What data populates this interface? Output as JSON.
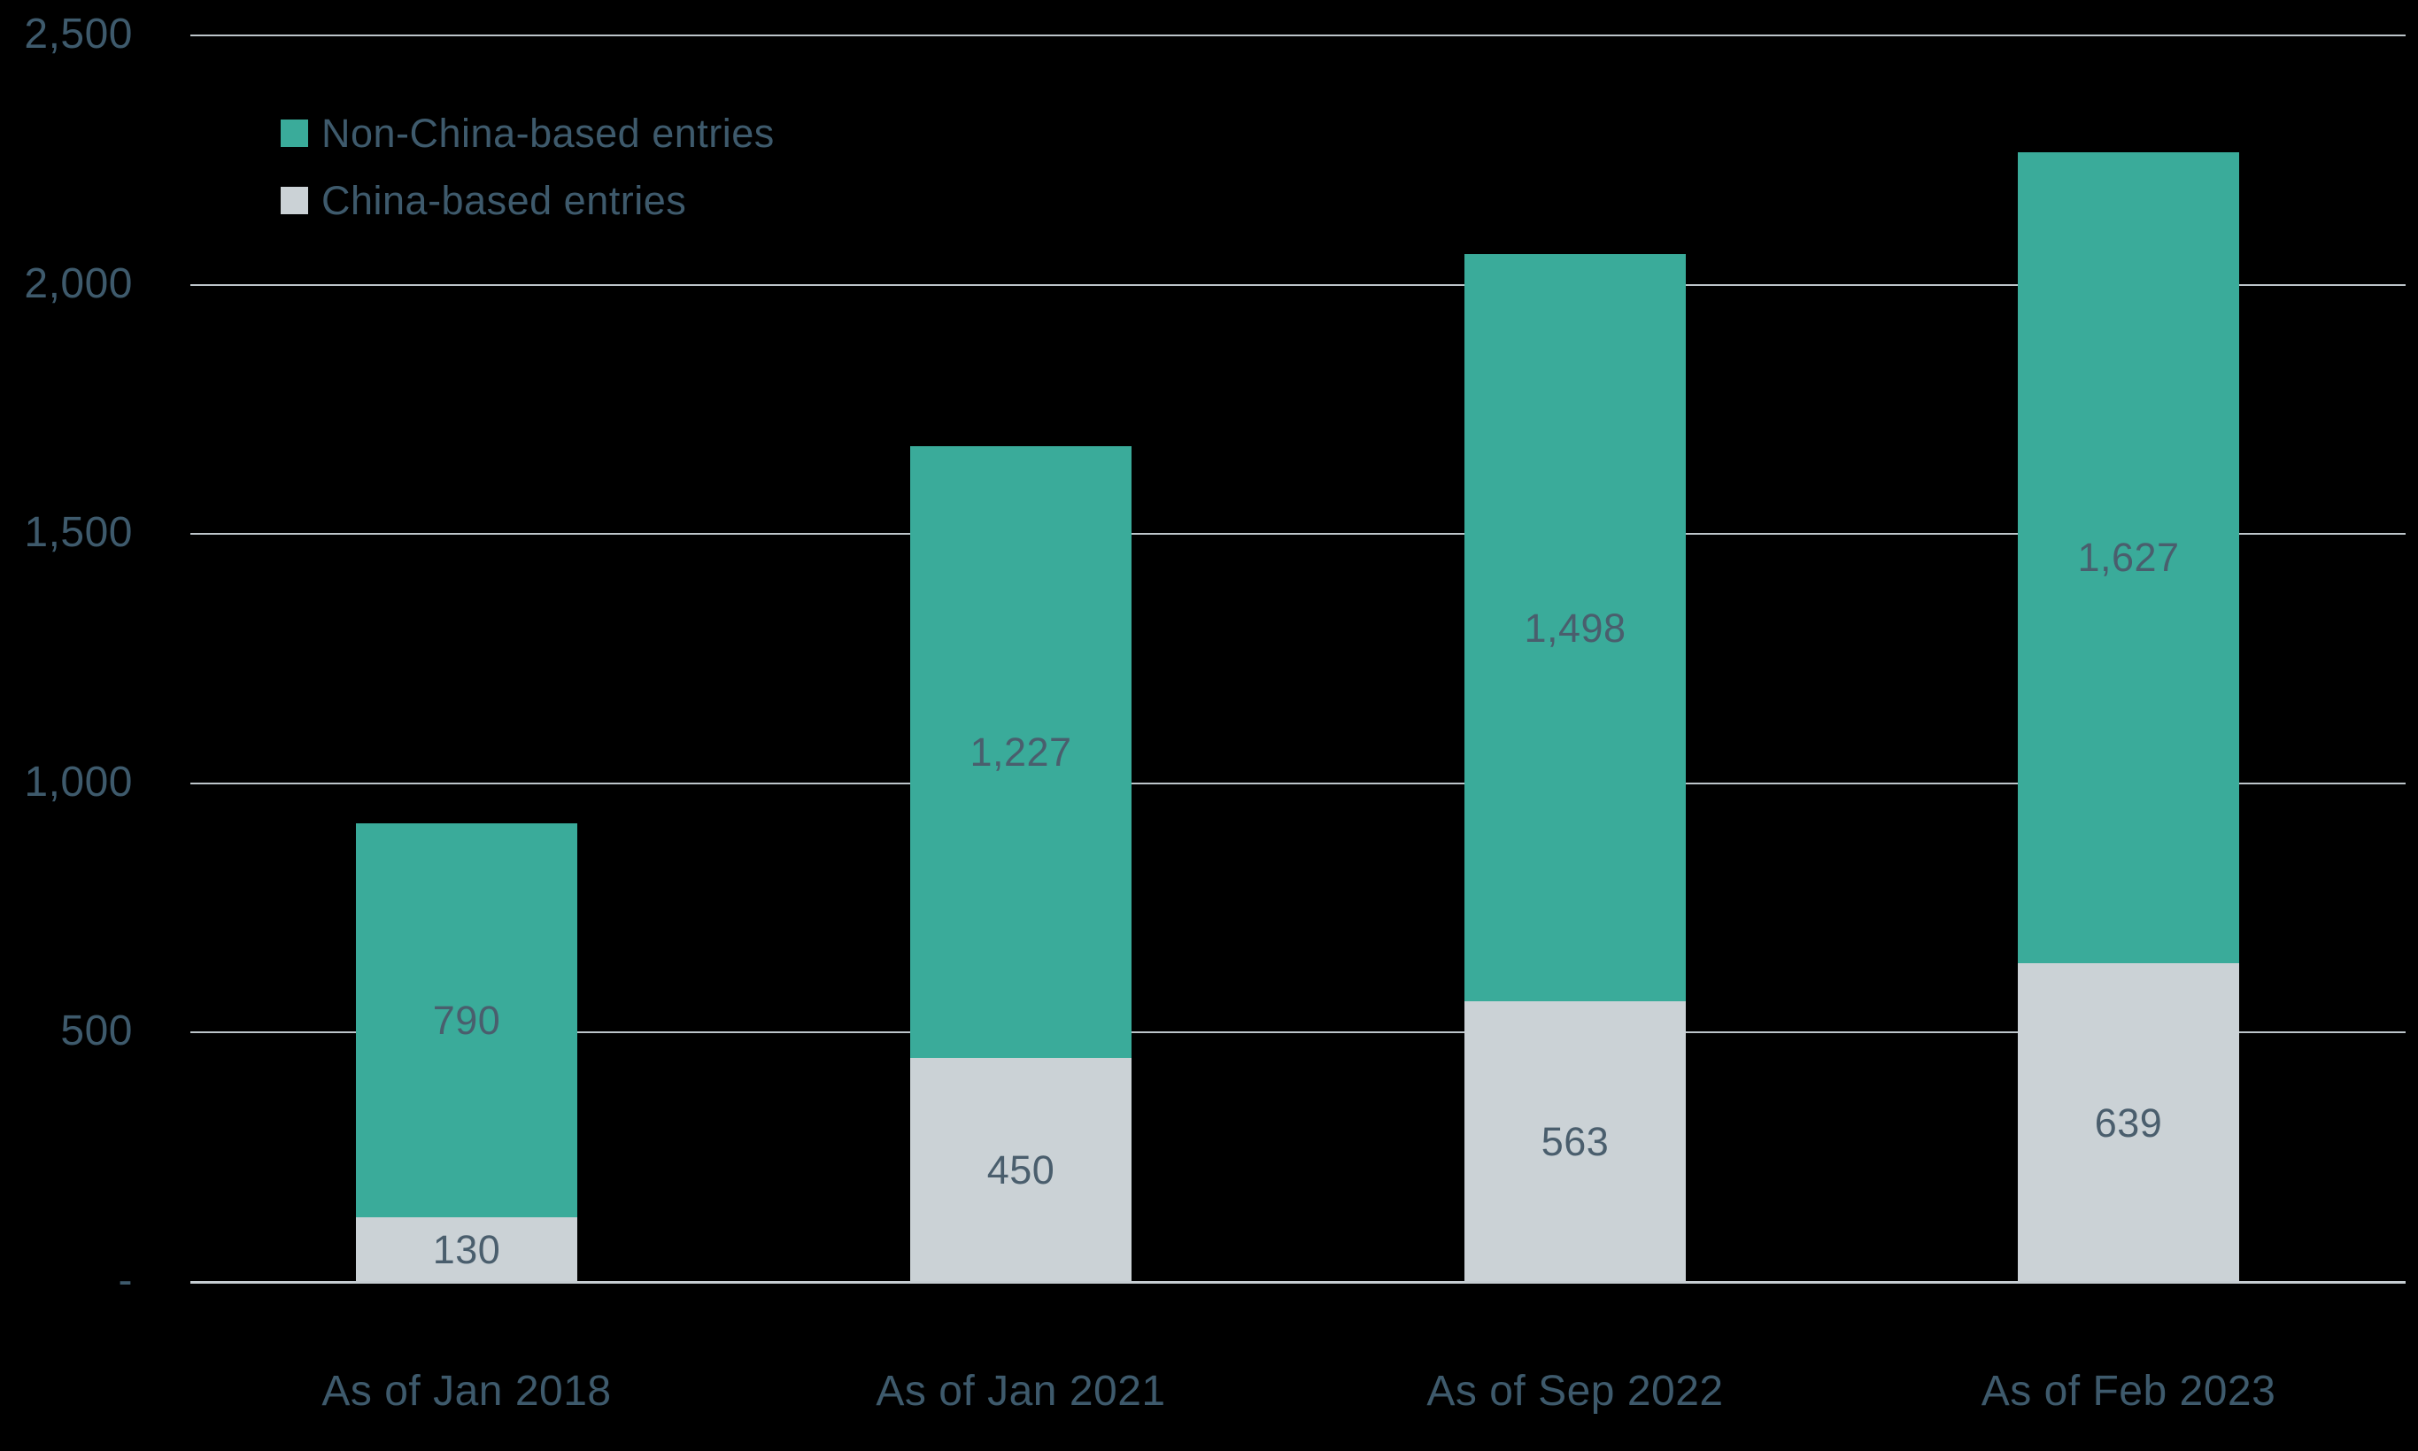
{
  "colors": {
    "background": "#000000",
    "teal": "#3AAB9A",
    "gray": "#CBD2D6",
    "axis_text": "#3E5A6C",
    "value_text": "#4A5E6D",
    "gridline": "#BDC5CA",
    "baseline": "#C6CDD2"
  },
  "legend": {
    "items": [
      {
        "label": "Non-China-based entries",
        "color_key": "teal"
      },
      {
        "label": "China-based entries",
        "color_key": "gray"
      }
    ]
  },
  "chart_data": {
    "type": "bar",
    "stacked": true,
    "title": "",
    "xlabel": "",
    "ylabel": "",
    "categories": [
      "As of Jan 2018",
      "As of Jan 2021",
      "As of Sep 2022",
      "As of Feb 2023"
    ],
    "series": [
      {
        "name": "China-based entries",
        "color_key": "gray",
        "values": [
          130,
          450,
          563,
          639
        ],
        "labels": [
          "130",
          "450",
          "563",
          "639"
        ]
      },
      {
        "name": "Non-China-based entries",
        "color_key": "teal",
        "values": [
          790,
          1227,
          1498,
          1627
        ],
        "labels": [
          "790",
          "1,227",
          "1,498",
          "1,627"
        ]
      }
    ],
    "totals": [
      920,
      1677,
      2061,
      2266
    ],
    "y_axis": {
      "min": 0,
      "max": 2500,
      "step": 500,
      "tick_labels": [
        "-",
        "500",
        "1,000",
        "1,500",
        "2,000",
        "2,500"
      ]
    },
    "grid": "horizontal",
    "legend_position": "top-left"
  }
}
